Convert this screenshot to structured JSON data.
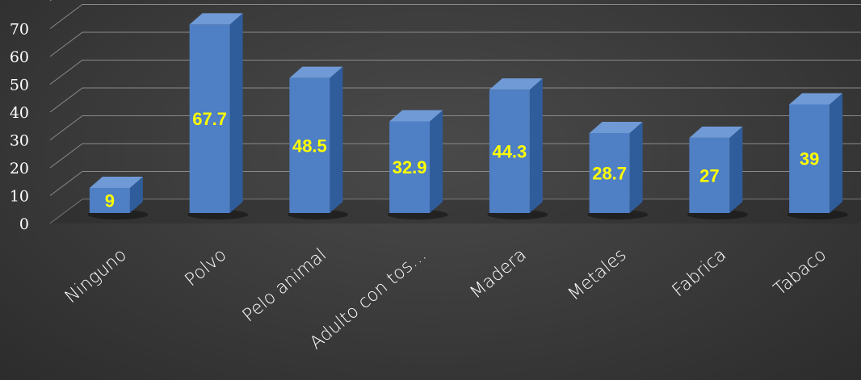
{
  "chart_data": {
    "type": "bar",
    "categories": [
      "Ninguno",
      "Polvo",
      "Pelo animal",
      "Adulto con tos…",
      "Madera",
      "Metales",
      "Fabrica",
      "Tabaco"
    ],
    "values": [
      9,
      67.7,
      48.5,
      32.9,
      44.3,
      28.7,
      27,
      39
    ],
    "data_labels": [
      "9",
      "67.7",
      "48.5",
      "32.9",
      "44.3",
      "28.7",
      "27",
      "39"
    ],
    "y_ticks": [
      "0",
      "10",
      "20",
      "30",
      "40",
      "50",
      "60",
      "70"
    ],
    "ylim": [
      0,
      80
    ],
    "grid": true,
    "legend": "none",
    "three_d": true,
    "colors": {
      "bar_front": "#4f7fc4",
      "bar_top": "#6f9ad6",
      "bar_side": "#2f5c9a",
      "data_label": "#ffff00",
      "grid": "#8a8a8a",
      "text": "#ffffff"
    }
  }
}
